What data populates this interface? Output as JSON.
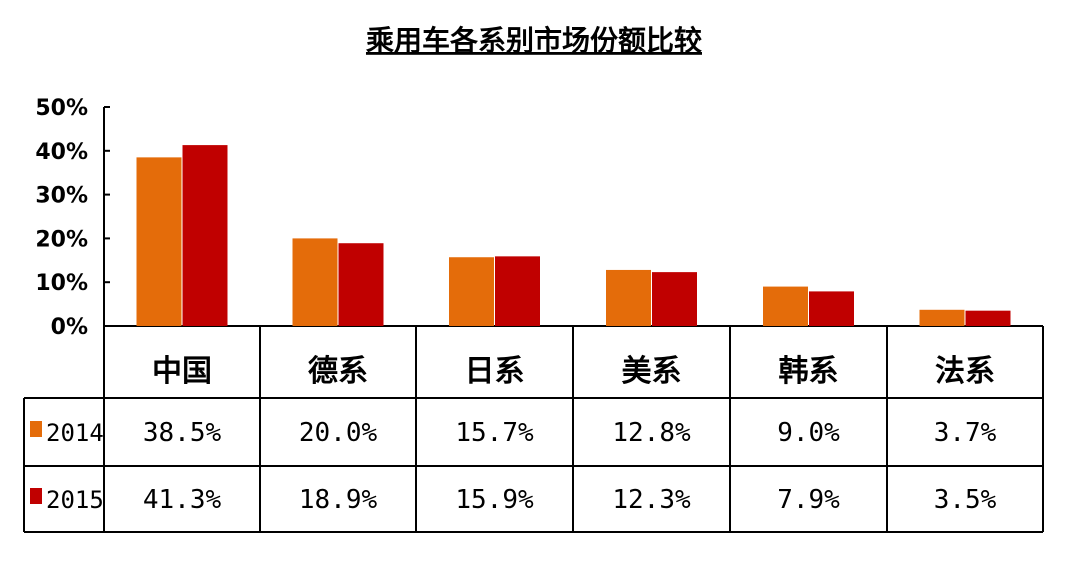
{
  "chart_data": {
    "type": "bar",
    "title": "乘用车各系别市场份额比较",
    "categories": [
      "中国",
      "德系",
      "日系",
      "美系",
      "韩系",
      "法系"
    ],
    "series": [
      {
        "name": "2014",
        "color": "#E46C0A",
        "values": [
          38.5,
          20.0,
          15.7,
          12.8,
          9.0,
          3.7
        ],
        "labels": [
          "38.5%",
          "20.0%",
          "15.7%",
          "12.8%",
          "9.0%",
          "3.7%"
        ]
      },
      {
        "name": "2015",
        "color": "#C00000",
        "values": [
          41.3,
          18.9,
          15.9,
          12.3,
          7.9,
          3.5
        ],
        "labels": [
          "41.3%",
          "18.9%",
          "15.9%",
          "12.3%",
          "7.9%",
          "3.5%"
        ]
      }
    ],
    "y_ticks": [
      "0%",
      "10%",
      "20%",
      "30%",
      "40%",
      "50%"
    ],
    "ylim": [
      0,
      50
    ],
    "grid": false,
    "legend": "data-table"
  }
}
